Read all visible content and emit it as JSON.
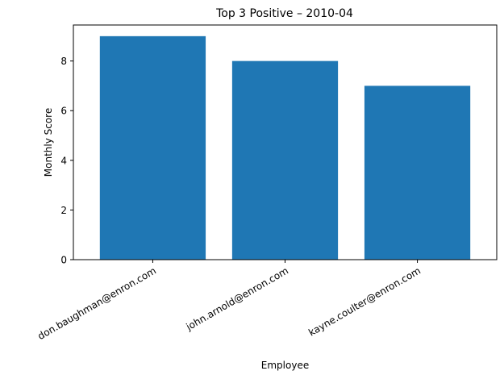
{
  "chart_data": {
    "type": "bar",
    "title": "Top 3 Positive – 2010-04",
    "xlabel": "Employee",
    "ylabel": "Monthly Score",
    "categories": [
      "don.baughman@enron.com",
      "john.arnold@enron.com",
      "kayne.coulter@enron.com"
    ],
    "values": [
      9,
      8,
      7
    ],
    "ylim": [
      0,
      9.45
    ],
    "yticks": [
      "0",
      "2",
      "4",
      "6",
      "8"
    ],
    "bar_color": "#1f77b4",
    "grid": false,
    "legend": "none"
  }
}
